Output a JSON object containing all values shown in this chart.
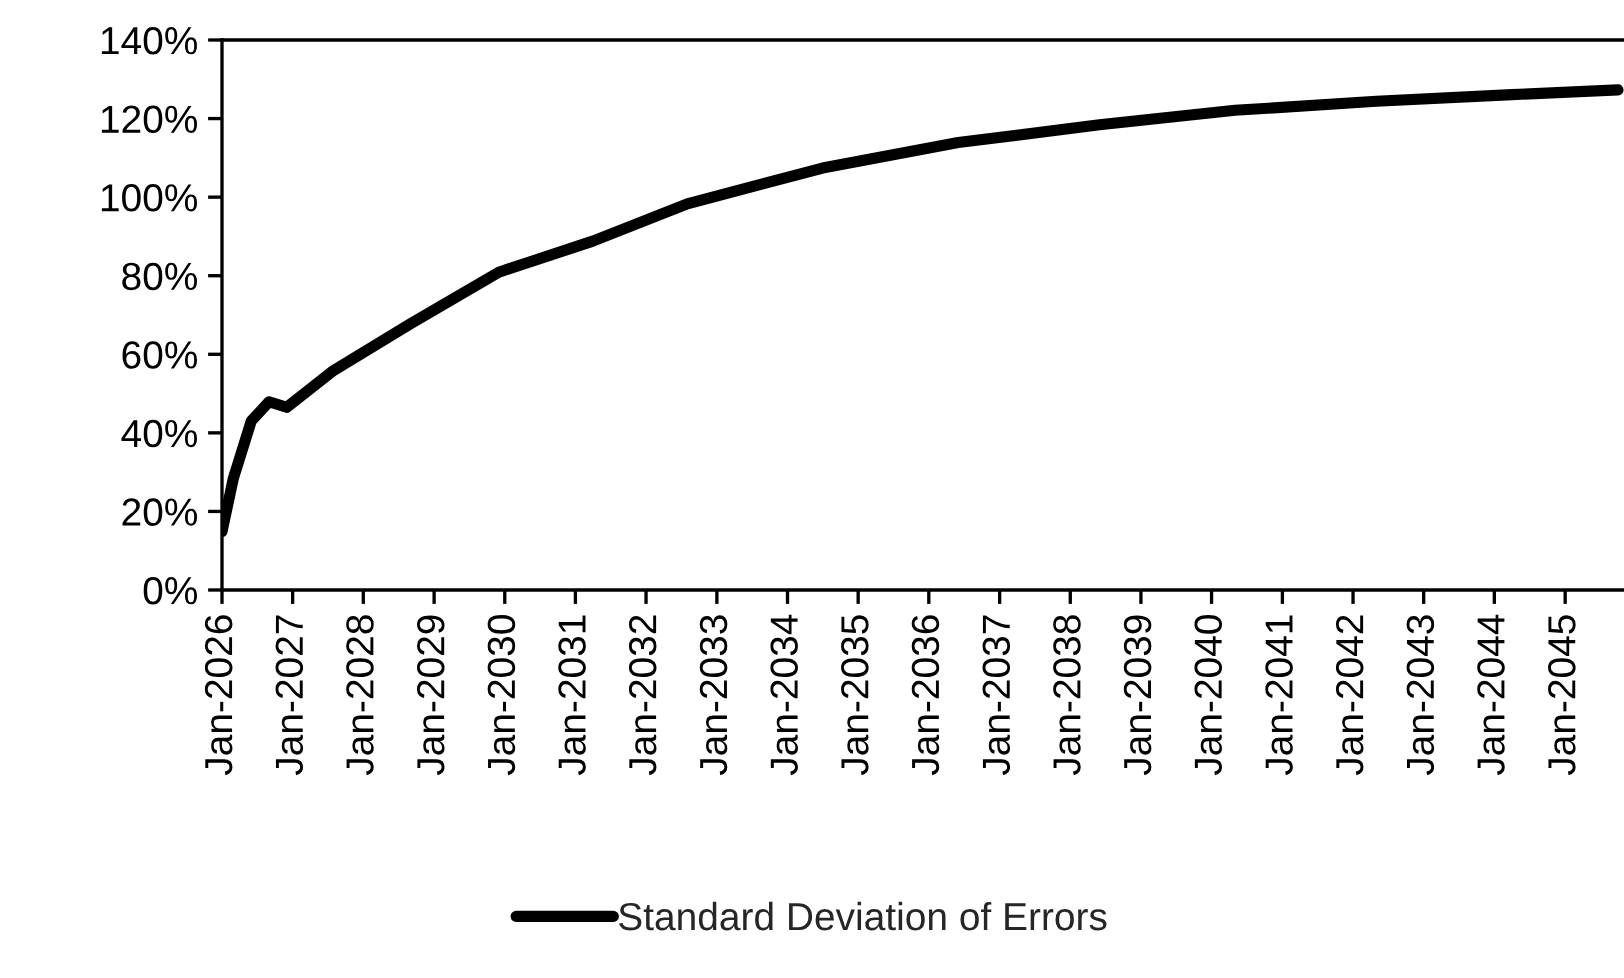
{
  "chart_data": {
    "type": "line",
    "x": [
      "2026-01",
      "2026-03",
      "2026-06",
      "2026-09",
      "2026-12",
      "2027-08",
      "2028-09",
      "2029-12",
      "2031-04",
      "2032-08",
      "2034-07",
      "2036-06",
      "2038-06",
      "2040-05",
      "2042-05",
      "2044-04",
      "2045-10"
    ],
    "series": [
      {
        "name": "Standard Deviation of Errors",
        "color": "#000000",
        "values": [
          14.9,
          28.5,
          43.0,
          47.9,
          46.5,
          55.9,
          67.8,
          80.9,
          88.8,
          98.3,
          107.4,
          113.9,
          118.4,
          122.1,
          124.4,
          126.1,
          127.3
        ]
      }
    ],
    "xlim": [
      "2026-01",
      "2045-11"
    ],
    "xticks": [
      {
        "value": "2026-01",
        "label": "Jan-2026"
      },
      {
        "value": "2027-01",
        "label": "Jan-2027"
      },
      {
        "value": "2028-01",
        "label": "Jan-2028"
      },
      {
        "value": "2029-01",
        "label": "Jan-2029"
      },
      {
        "value": "2030-01",
        "label": "Jan-2030"
      },
      {
        "value": "2031-01",
        "label": "Jan-2031"
      },
      {
        "value": "2032-01",
        "label": "Jan-2032"
      },
      {
        "value": "2033-01",
        "label": "Jan-2033"
      },
      {
        "value": "2034-01",
        "label": "Jan-2034"
      },
      {
        "value": "2035-01",
        "label": "Jan-2035"
      },
      {
        "value": "2036-01",
        "label": "Jan-2036"
      },
      {
        "value": "2037-01",
        "label": "Jan-2037"
      },
      {
        "value": "2038-01",
        "label": "Jan-2038"
      },
      {
        "value": "2039-01",
        "label": "Jan-2039"
      },
      {
        "value": "2040-01",
        "label": "Jan-2040"
      },
      {
        "value": "2041-01",
        "label": "Jan-2041"
      },
      {
        "value": "2042-01",
        "label": "Jan-2042"
      },
      {
        "value": "2043-01",
        "label": "Jan-2043"
      },
      {
        "value": "2044-01",
        "label": "Jan-2044"
      },
      {
        "value": "2045-01",
        "label": "Jan-2045"
      }
    ],
    "ylim": [
      0,
      140
    ],
    "yticks": [
      {
        "value": 0,
        "label": "0%"
      },
      {
        "value": 20,
        "label": "20%"
      },
      {
        "value": 40,
        "label": "40%"
      },
      {
        "value": 60,
        "label": "60%"
      },
      {
        "value": 80,
        "label": "80%"
      },
      {
        "value": 100,
        "label": "100%"
      },
      {
        "value": 120,
        "label": "120%"
      },
      {
        "value": 140,
        "label": "140%"
      }
    ],
    "legend": "bottom",
    "grid": false,
    "marker": "none",
    "line_style": "solid"
  }
}
